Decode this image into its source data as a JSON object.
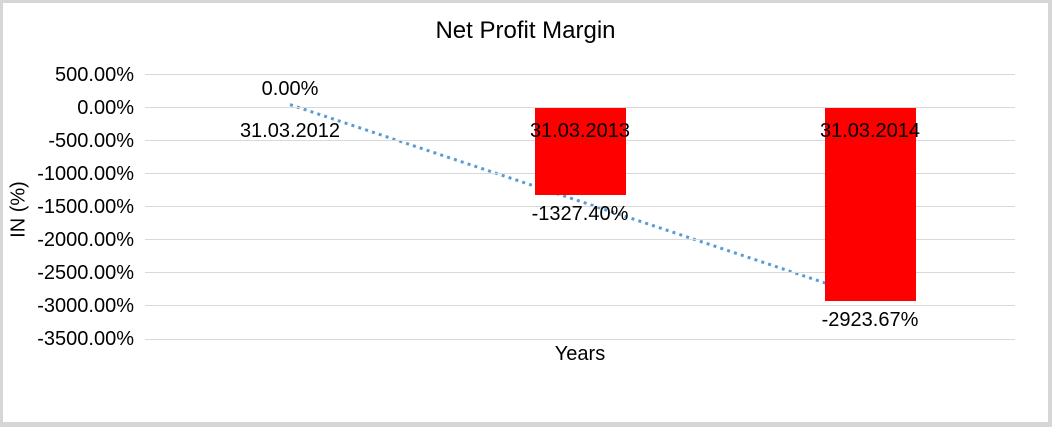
{
  "chart_data": {
    "type": "bar",
    "title": "Net Profit Margin",
    "xlabel": "Years",
    "ylabel": "IN (%)",
    "categories": [
      "31.03.2012",
      "31.03.2013",
      "31.03.2014"
    ],
    "values": [
      0,
      -1327.4,
      -2923.67
    ],
    "data_labels": [
      "0.00%",
      "-1327.40%",
      "-2923.67%"
    ],
    "y_ticks": [
      "500.00%",
      "0.00%",
      "-500.00%",
      "-1000.00%",
      "-1500.00%",
      "-2000.00%",
      "-2500.00%",
      "-3000.00%",
      "-3500.00%"
    ],
    "y_tick_values": [
      500,
      0,
      -500,
      -1000,
      -1500,
      -2000,
      -2500,
      -3000,
      -3500
    ],
    "ylim": [
      -3500,
      500
    ],
    "grid": true,
    "legend": false,
    "bar_color": "#FF0000",
    "gridline_color": "#d9d9d9",
    "text_color": "#000000",
    "trendline": {
      "type": "linear",
      "style": "dotted",
      "color": "#5B9BD5",
      "start_value": 45,
      "end_value": -2879
    }
  }
}
